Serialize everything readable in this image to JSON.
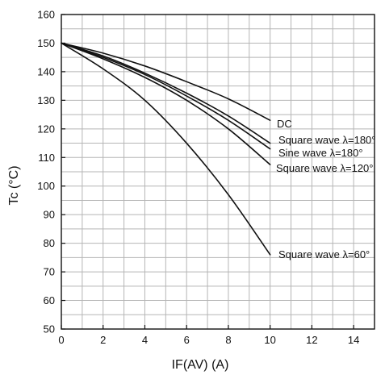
{
  "chart_data": {
    "type": "line",
    "xlabel": "IF(AV)   (A)",
    "ylabel": "Tc  (°C)",
    "xlim": [
      0,
      15
    ],
    "ylim": [
      50,
      160
    ],
    "x_ticks": [
      0,
      2,
      4,
      6,
      8,
      10,
      12,
      14
    ],
    "y_ticks": [
      50,
      60,
      70,
      80,
      90,
      100,
      110,
      120,
      130,
      140,
      150,
      160
    ],
    "grid": true,
    "series": [
      {
        "name": "DC",
        "x": [
          0,
          2,
          4,
          6,
          8,
          10
        ],
        "y": [
          150,
          146.5,
          142,
          136.5,
          130.5,
          123
        ]
      },
      {
        "name": "Square wave  λ=180°",
        "x": [
          0,
          2,
          4,
          6,
          8,
          10
        ],
        "y": [
          150,
          145.5,
          139.5,
          132.5,
          124.5,
          115
        ]
      },
      {
        "name": "Sine wave  λ=180°",
        "x": [
          0,
          2,
          4,
          6,
          8,
          10
        ],
        "y": [
          150,
          145,
          139,
          131.5,
          123,
          113
        ]
      },
      {
        "name": "Square wave  λ=120°",
        "x": [
          0,
          2,
          4,
          6,
          8,
          10
        ],
        "y": [
          150,
          144.5,
          138,
          130,
          120,
          107.5
        ]
      },
      {
        "name": "Square wave  λ=60°",
        "x": [
          0,
          2,
          4,
          6,
          8,
          10
        ],
        "y": [
          150,
          141,
          130,
          115,
          97,
          76
        ]
      }
    ]
  }
}
